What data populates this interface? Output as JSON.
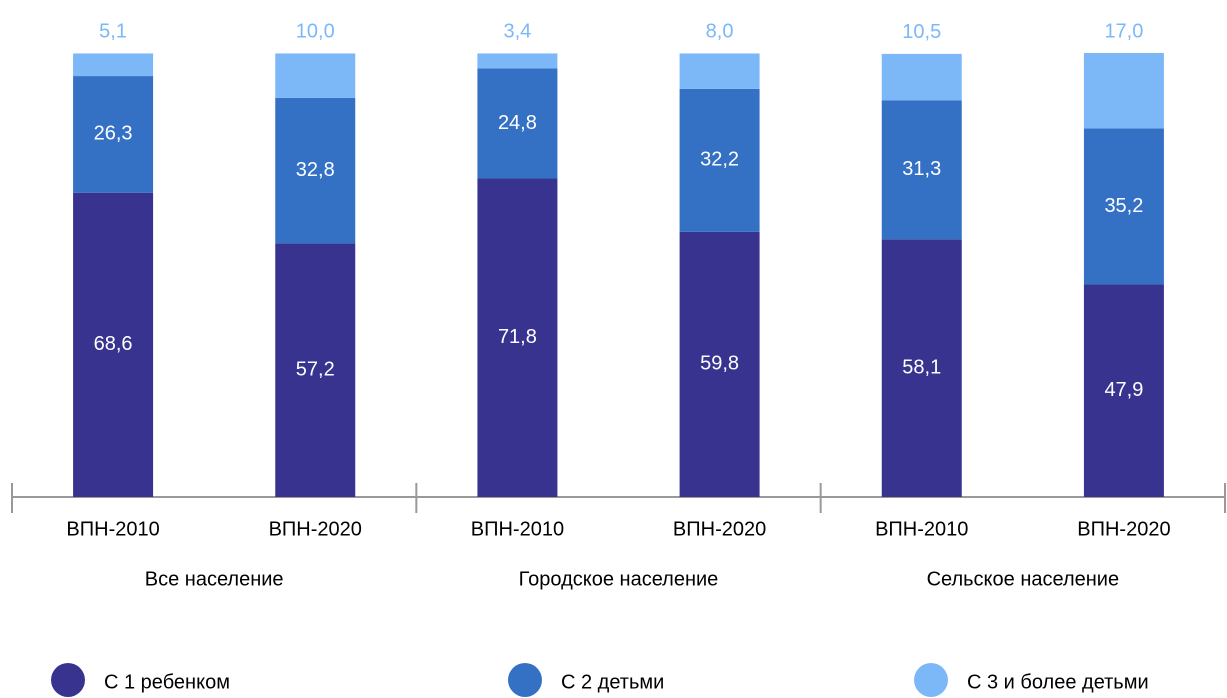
{
  "chart_data": {
    "type": "stacked_bar",
    "categories": [
      "ВПН-2010",
      "ВПН-2020",
      "ВПН-2010",
      "ВПН-2020",
      "ВПН-2010",
      "ВПН-2020"
    ],
    "groups": [
      "Все население",
      "Городское население",
      "Сельское население"
    ],
    "series": [
      {
        "name": "С 1 ребенком",
        "color": "#37338f",
        "values": [
          68.6,
          57.2,
          71.8,
          59.8,
          58.1,
          47.9
        ],
        "value_labels": [
          "68,6",
          "57,2",
          "71,8",
          "59,8",
          "58,1",
          "47,9"
        ]
      },
      {
        "name": "С 2 детьми",
        "color": "#3471c4",
        "values": [
          26.3,
          32.8,
          24.8,
          32.2,
          31.3,
          35.2
        ],
        "value_labels": [
          "26,3",
          "32,8",
          "24,8",
          "32,2",
          "31,3",
          "35,2"
        ]
      },
      {
        "name": "С 3 и более детьми",
        "color": "#7cb8f8",
        "values": [
          5.1,
          10.0,
          3.4,
          8.0,
          10.5,
          17.0
        ],
        "value_labels": [
          "5,1",
          "10,0",
          "3,4",
          "8,0",
          "10,5",
          "17,0"
        ]
      }
    ]
  }
}
